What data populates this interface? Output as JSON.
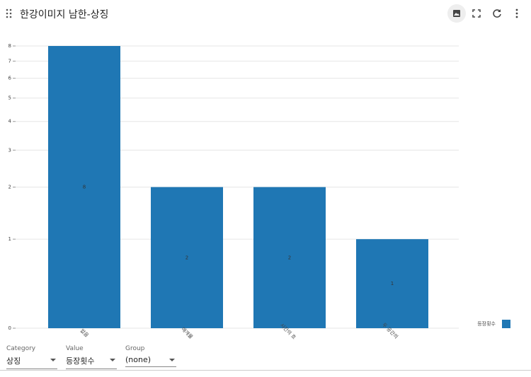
{
  "header": {
    "title": "한강이미지 남한-상징"
  },
  "chart_data": {
    "type": "bar",
    "categories": [
      "없음",
      "매개물",
      "시간의 흐...",
      "두 공간의 ..."
    ],
    "series": [
      {
        "name": "등장횟수",
        "color": "#1f77b4",
        "values": [
          8,
          2,
          2,
          1
        ]
      }
    ],
    "ylim": [
      0,
      8
    ],
    "yticks": [
      0,
      1,
      2,
      3,
      4,
      5,
      6,
      7,
      8
    ],
    "yscale": "log1p",
    "grid": true,
    "legend": "right"
  },
  "controls": [
    {
      "label": "Category",
      "value": "상징"
    },
    {
      "label": "Value",
      "value": "등장횟수"
    },
    {
      "label": "Group",
      "value": "(none)"
    }
  ]
}
